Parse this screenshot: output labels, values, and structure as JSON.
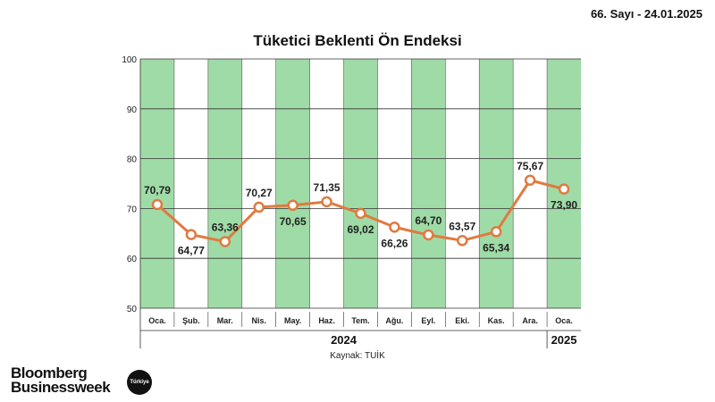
{
  "header": {
    "issue": "66. Sayı - 24.01.2025"
  },
  "source": "Kaynak: TUİK",
  "logo": {
    "line1": "Bloomberg",
    "line2": "Businessweek",
    "badge": "Türkiye"
  },
  "chart_data": {
    "type": "line",
    "title": "Tüketici Beklenti Ön Endeksi",
    "categories": [
      "Oca.",
      "Şub.",
      "Mar.",
      "Nis.",
      "May.",
      "Haz.",
      "Tem.",
      "Ağu.",
      "Eyl.",
      "Eki.",
      "Kas.",
      "Ara.",
      "Oca."
    ],
    "years": [
      {
        "label": "2024",
        "span": 12
      },
      {
        "label": "2025",
        "span": 1
      }
    ],
    "values": [
      70.79,
      64.77,
      63.36,
      70.27,
      70.65,
      71.35,
      69.02,
      66.26,
      64.7,
      63.57,
      65.34,
      75.67,
      73.9
    ],
    "value_labels": [
      "70,79",
      "64,77",
      "63,36",
      "70,27",
      "70,65",
      "71,35",
      "69,02",
      "66,26",
      "64,70",
      "63,57",
      "65,34",
      "75,67",
      "73,90"
    ],
    "ylim": [
      50,
      100
    ],
    "yticks": [
      50,
      60,
      70,
      80,
      90,
      100
    ],
    "grid": true,
    "colors": {
      "line": "#e07a40",
      "band": "#9fdba6"
    }
  }
}
